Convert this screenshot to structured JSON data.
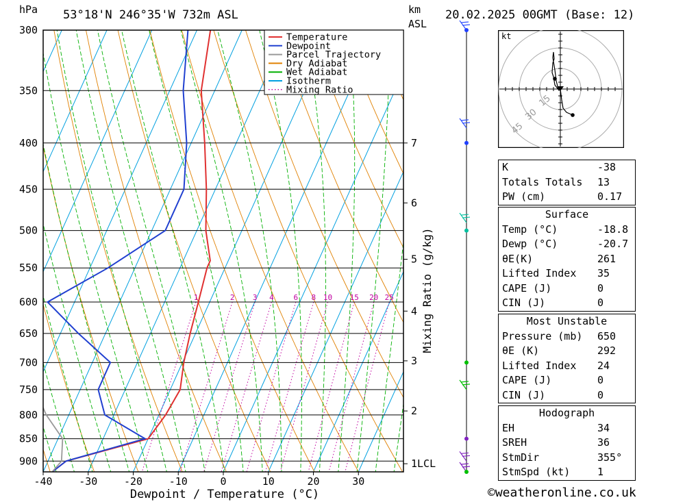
{
  "header": {
    "units_hpa": "hPa",
    "location": "53°18'N  246°35'W  732m  ASL",
    "units_km": "km",
    "units_asl": "ASL",
    "datetime": "20.02.2025  00GMT  (Base: 12)"
  },
  "chart_data": {
    "type": "line",
    "title": "",
    "xlabel": "Dewpoint / Temperature (°C)",
    "ylabel": "hPa",
    "y2label": "Mixing Ratio (g/kg)",
    "xlim": [
      -40,
      40
    ],
    "ylim": [
      925,
      300
    ],
    "y_scale": "log",
    "x_ticks": [
      "-40",
      "-30",
      "-20",
      "-10",
      "0",
      "10",
      "20",
      "30"
    ],
    "pressure_ticks": [
      "300",
      "350",
      "400",
      "450",
      "500",
      "550",
      "600",
      "650",
      "700",
      "750",
      "800",
      "850",
      "900"
    ],
    "km_ticks": [
      {
        "label": "7",
        "p": 400
      },
      {
        "label": "6",
        "p": 466
      },
      {
        "label": "5",
        "p": 538
      },
      {
        "label": "4",
        "p": 614
      },
      {
        "label": "3",
        "p": 697
      },
      {
        "label": "2",
        "p": 792
      },
      {
        "label": "1LCL",
        "p": 906
      }
    ],
    "mixing_ratio_labels": [
      "1",
      "2",
      "3",
      "4",
      "6",
      "8",
      "10",
      "15",
      "20",
      "25"
    ],
    "legend": {
      "placement": "top-right",
      "entries": [
        {
          "name": "Temperature",
          "color": "#e03030"
        },
        {
          "name": "Dewpoint",
          "color": "#2040d0"
        },
        {
          "name": "Parcel Trajectory",
          "color": "#999999"
        },
        {
          "name": "Dry Adiabat",
          "color": "#e08000"
        },
        {
          "name": "Wet Adiabat",
          "color": "#00b000"
        },
        {
          "name": "Isotherm",
          "color": "#00a0e0"
        },
        {
          "name": "Mixing Ratio",
          "color": "#c000a0"
        }
      ]
    },
    "series": [
      {
        "name": "Temperature",
        "color": "#e03030",
        "points": [
          [
            300,
            -47
          ],
          [
            350,
            -43
          ],
          [
            400,
            -37
          ],
          [
            450,
            -32
          ],
          [
            500,
            -28
          ],
          [
            540,
            -24
          ],
          [
            550,
            -24
          ],
          [
            600,
            -22.5
          ],
          [
            650,
            -21.2
          ],
          [
            700,
            -19.7
          ],
          [
            750,
            -17.8
          ],
          [
            800,
            -18.5
          ],
          [
            850,
            -20
          ],
          [
            900,
            -36
          ],
          [
            925,
            -38
          ]
        ]
      },
      {
        "name": "Dewpoint",
        "color": "#2040d0",
        "points": [
          [
            300,
            -52
          ],
          [
            350,
            -47
          ],
          [
            400,
            -41
          ],
          [
            450,
            -37
          ],
          [
            500,
            -37
          ],
          [
            550,
            -46
          ],
          [
            600,
            -56
          ],
          [
            650,
            -46
          ],
          [
            700,
            -36
          ],
          [
            750,
            -36
          ],
          [
            800,
            -32
          ],
          [
            850,
            -20.7
          ],
          [
            900,
            -36
          ],
          [
            925,
            -38
          ]
        ]
      },
      {
        "name": "Parcel Trajectory",
        "color": "#999999",
        "points": [
          [
            460,
            -72
          ],
          [
            500,
            -70
          ],
          [
            550,
            -66
          ],
          [
            600,
            -63
          ],
          [
            650,
            -58
          ],
          [
            700,
            -54
          ],
          [
            750,
            -50
          ],
          [
            800,
            -45
          ],
          [
            850,
            -39
          ],
          [
            900,
            -37
          ],
          [
            925,
            -38
          ]
        ]
      }
    ],
    "wind_barbs_pressures": [
      300,
      385,
      490,
      750,
      900,
      925
    ],
    "profile_dots": [
      {
        "p": 300,
        "color": "#2040ff"
      },
      {
        "p": 400,
        "color": "#2040ff"
      },
      {
        "p": 500,
        "color": "#00c0a0"
      },
      {
        "p": 700,
        "color": "#00c000"
      },
      {
        "p": 850,
        "color": "#8020c0"
      },
      {
        "p": 925,
        "color": "#00c000"
      }
    ]
  },
  "hodograph": {
    "unit": "kt",
    "ring_labels": [
      "15",
      "30",
      "45"
    ],
    "trace": [
      [
        0,
        0
      ],
      [
        -1,
        -1
      ],
      [
        -4,
        3
      ],
      [
        -5,
        9
      ],
      [
        -6,
        12
      ],
      [
        -5.5,
        19
      ],
      [
        -4.5,
        22
      ],
      [
        -5,
        27
      ],
      [
        -5.5,
        23
      ],
      [
        -4,
        14
      ],
      [
        -3,
        6
      ],
      [
        -1.5,
        0
      ],
      [
        0,
        0
      ],
      [
        1,
        -8
      ],
      [
        2,
        -14
      ],
      [
        4.5,
        -17
      ],
      [
        9,
        -19
      ]
    ],
    "markers": [
      [
        -4,
        7.5
      ],
      [
        9,
        -19
      ]
    ]
  },
  "indices": {
    "top": [
      {
        "key": "K",
        "value": "-38"
      },
      {
        "key": "Totals Totals",
        "value": "13"
      },
      {
        "key": "PW (cm)",
        "value": "0.17"
      }
    ],
    "surface": {
      "title": "Surface",
      "rows": [
        {
          "key": "Temp (°C)",
          "value": "-18.8"
        },
        {
          "key": "Dewp (°C)",
          "value": "-20.7"
        },
        {
          "key": "θE(K)",
          "value": "261"
        },
        {
          "key": "Lifted Index",
          "value": "35"
        },
        {
          "key": "CAPE (J)",
          "value": "0"
        },
        {
          "key": "CIN (J)",
          "value": "0"
        }
      ]
    },
    "most_unstable": {
      "title": "Most Unstable",
      "rows": [
        {
          "key": "Pressure (mb)",
          "value": "650"
        },
        {
          "key": "θE (K)",
          "value": "292"
        },
        {
          "key": "Lifted Index",
          "value": "24"
        },
        {
          "key": "CAPE (J)",
          "value": "0"
        },
        {
          "key": "CIN (J)",
          "value": "0"
        }
      ]
    },
    "hodograph_box": {
      "title": "Hodograph",
      "rows": [
        {
          "key": "EH",
          "value": "34"
        },
        {
          "key": "SREH",
          "value": "36"
        },
        {
          "key": "StmDir",
          "value": "355°"
        },
        {
          "key": "StmSpd (kt)",
          "value": "1"
        }
      ]
    }
  },
  "footer": {
    "brand": "©weatheronline.co.uk"
  }
}
